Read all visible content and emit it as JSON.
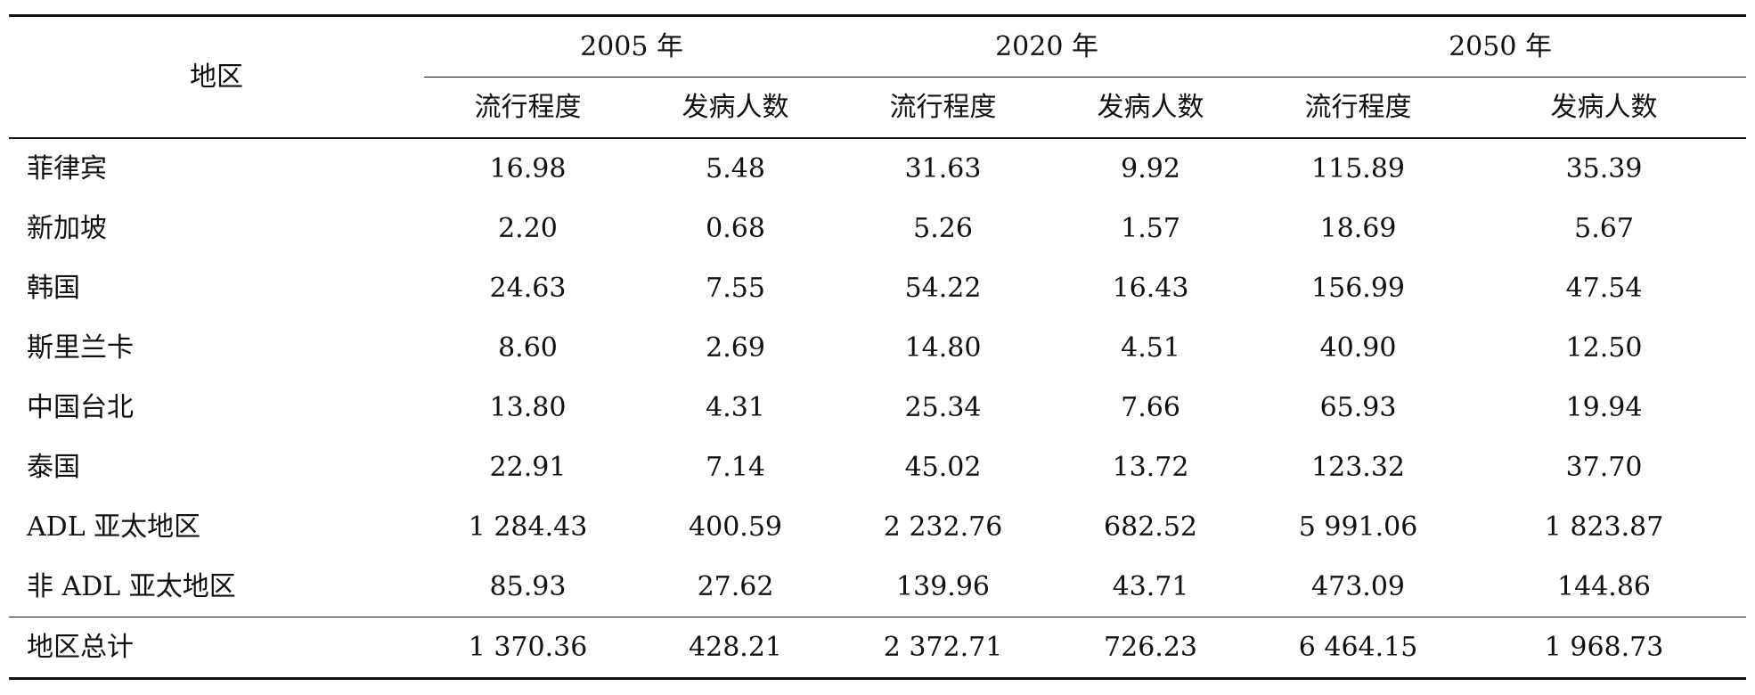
{
  "table": {
    "region_header": "地区",
    "year_groups": [
      "2005 年",
      "2020 年",
      "2050 年"
    ],
    "sub_headers": [
      "流行程度",
      "发病人数",
      "流行程度",
      "发病人数",
      "流行程度",
      "发病人数"
    ],
    "rows": [
      {
        "region": "菲律宾",
        "values": [
          "16.98",
          "5.48",
          "31.63",
          "9.92",
          "115.89",
          "35.39"
        ]
      },
      {
        "region": "新加坡",
        "values": [
          "2.20",
          "0.68",
          "5.26",
          "1.57",
          "18.69",
          "5.67"
        ]
      },
      {
        "region": "韩国",
        "values": [
          "24.63",
          "7.55",
          "54.22",
          "16.43",
          "156.99",
          "47.54"
        ]
      },
      {
        "region": "斯里兰卡",
        "values": [
          "8.60",
          "2.69",
          "14.80",
          "4.51",
          "40.90",
          "12.50"
        ]
      },
      {
        "region": "中国台北",
        "values": [
          "13.80",
          "4.31",
          "25.34",
          "7.66",
          "65.93",
          "19.94"
        ]
      },
      {
        "region": "泰国",
        "values": [
          "22.91",
          "7.14",
          "45.02",
          "13.72",
          "123.32",
          "37.70"
        ]
      },
      {
        "region": "ADL 亚太地区",
        "values": [
          "1 284.43",
          "400.59",
          "2 232.76",
          "682.52",
          "5 991.06",
          "1 823.87"
        ]
      },
      {
        "region": "非 ADL 亚太地区",
        "values": [
          "85.93",
          "27.62",
          "139.96",
          "43.71",
          "473.09",
          "144.86"
        ]
      }
    ],
    "total": {
      "region": "地区总计",
      "values": [
        "1 370.36",
        "428.21",
        "2 372.71",
        "726.23",
        "6 464.15",
        "1 968.73"
      ]
    }
  }
}
